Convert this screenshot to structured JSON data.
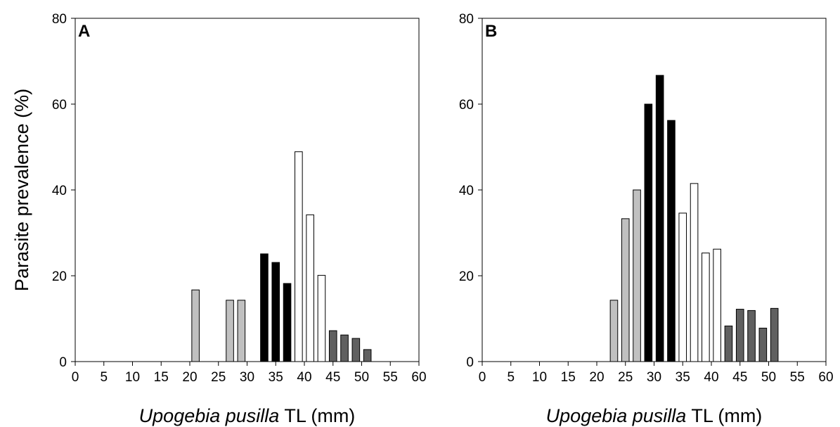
{
  "chart_data": [
    {
      "type": "bar",
      "panel_label": "A",
      "xlabel": {
        "italic": "Upogebia pusilla",
        "rest": " TL (mm)"
      },
      "ylabel": "Parasite prevalence (%)",
      "xlim": [
        0,
        60
      ],
      "ylim": [
        0,
        80
      ],
      "xticks": [
        "0",
        "5",
        "10",
        "15",
        "20",
        "25",
        "30",
        "35",
        "40",
        "45",
        "50",
        "55",
        "60"
      ],
      "yticks": [
        "0",
        "20",
        "40",
        "60",
        "80"
      ],
      "grid": false,
      "bar_width": 1.3,
      "series": [
        {
          "color": "#c0c0c0",
          "points": [
            [
              21,
              16.7
            ],
            [
              27,
              14.3
            ],
            [
              29,
              14.3
            ]
          ]
        },
        {
          "color": "#000000",
          "points": [
            [
              33,
              25.1
            ],
            [
              35,
              23.1
            ],
            [
              37,
              18.2
            ]
          ]
        },
        {
          "color": "#ffffff",
          "points": [
            [
              39,
              48.9
            ],
            [
              41,
              34.2
            ],
            [
              43,
              20.1
            ]
          ]
        },
        {
          "color": "#606060",
          "points": [
            [
              45,
              7.2
            ],
            [
              47,
              6.2
            ],
            [
              49,
              5.4
            ],
            [
              51,
              2.8
            ]
          ]
        }
      ]
    },
    {
      "type": "bar",
      "panel_label": "B",
      "xlabel": {
        "italic": "Upogebia pusilla",
        "rest": " TL (mm)"
      },
      "ylabel": "",
      "xlim": [
        0,
        60
      ],
      "ylim": [
        0,
        80
      ],
      "xticks": [
        "0",
        "5",
        "10",
        "15",
        "20",
        "25",
        "30",
        "35",
        "40",
        "45",
        "50",
        "55",
        "60"
      ],
      "yticks": [
        "0",
        "20",
        "40",
        "60",
        "80"
      ],
      "grid": false,
      "bar_width": 1.3,
      "series": [
        {
          "color": "#c0c0c0",
          "points": [
            [
              23,
              14.3
            ],
            [
              25,
              33.3
            ],
            [
              27,
              40.0
            ]
          ]
        },
        {
          "color": "#000000",
          "points": [
            [
              29,
              60.0
            ],
            [
              31,
              66.7
            ],
            [
              33,
              56.2
            ]
          ]
        },
        {
          "color": "#ffffff",
          "points": [
            [
              35,
              34.6
            ],
            [
              37,
              41.5
            ],
            [
              39,
              25.3
            ],
            [
              41,
              26.2
            ]
          ]
        },
        {
          "color": "#606060",
          "points": [
            [
              43,
              8.3
            ],
            [
              45,
              12.2
            ],
            [
              47,
              11.9
            ],
            [
              49,
              7.8
            ],
            [
              51,
              12.4
            ]
          ]
        }
      ]
    }
  ]
}
